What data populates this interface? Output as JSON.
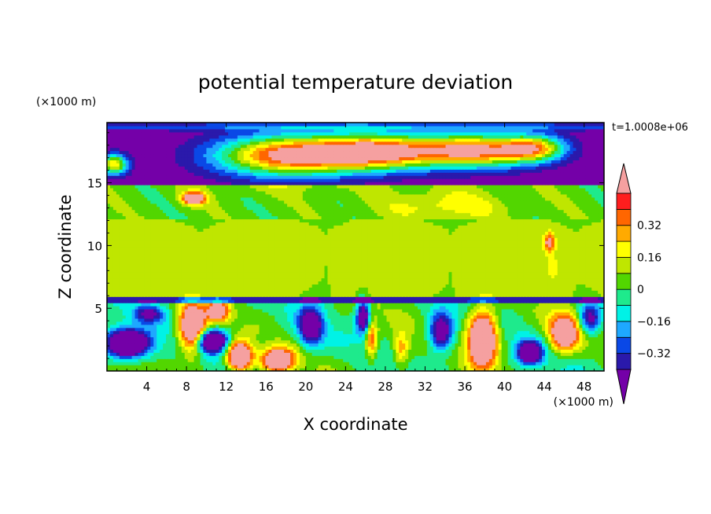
{
  "chart_data": {
    "type": "heatmap",
    "title": "potential temperature deviation",
    "xlabel": "X coordinate",
    "ylabel": "Z coordinate",
    "x_unit_label": "(×1000 m)",
    "y_unit_label": "(×1000 m)",
    "time_label": "t=1.0008e+06",
    "xlim": [
      0,
      50
    ],
    "ylim": [
      0,
      19.8
    ],
    "x_ticks": [
      4,
      8,
      12,
      16,
      20,
      24,
      28,
      32,
      36,
      40,
      44,
      48
    ],
    "y_ticks": [
      5,
      10,
      15
    ],
    "grid": false,
    "legend_position": "right",
    "colorbar": {
      "levels": [
        -0.4,
        -0.32,
        -0.24,
        -0.16,
        -0.08,
        0,
        0.08,
        0.16,
        0.24,
        0.32,
        0.4
      ],
      "tick_labels": [
        "0.32",
        "0.16",
        "0",
        "−0.16",
        "−0.32"
      ],
      "tick_values": [
        0.32,
        0.16,
        0,
        -0.16,
        -0.32
      ],
      "colors": [
        "#7400a8",
        "#2a19ab",
        "#0a48e6",
        "#1ea8ff",
        "#00f2e6",
        "#1eea8c",
        "#52d600",
        "#bfe600",
        "#ffff00",
        "#ffaa00",
        "#ff6600",
        "#ff1e1e",
        "#f5a0a0"
      ]
    },
    "regions_described": [
      {
        "z_range": [
          18.6,
          19.8
        ],
        "value_band": "mixed, strongly negative near top"
      },
      {
        "z_range": [
          14.8,
          18.6
        ],
        "value_band": "below -0.4 with a large above 0.4 region between x=18 and x=44"
      },
      {
        "z_range": [
          12.5,
          14.8
        ],
        "value_band": "0 to 0.08 with maximum 0.16 to 0.24 near x=34"
      },
      {
        "z_range": [
          6,
          12.5
        ],
        "value_band": "0.08 to 0.16"
      },
      {
        "z_range": [
          5.4,
          6
        ],
        "value_band": "-0.4 to -0.24 (inversion)"
      },
      {
        "z_range": [
          0,
          5.4
        ],
        "value_band": "turbulent, -0.4 to above 0.4"
      }
    ]
  }
}
